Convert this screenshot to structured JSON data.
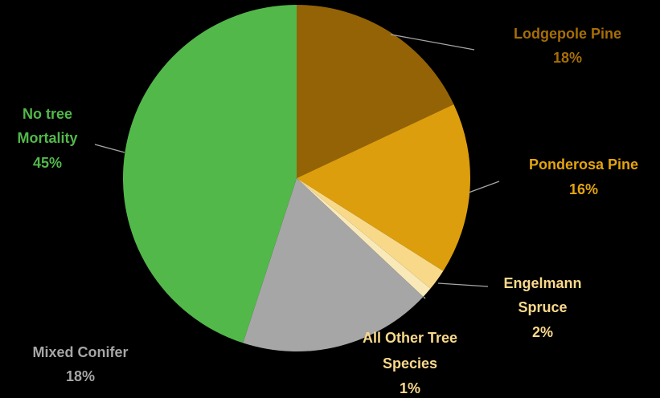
{
  "chart_data": {
    "type": "pie",
    "title": "",
    "background": "#000000",
    "slices": [
      {
        "label": "Lodgepole Pine",
        "value": 18,
        "value_label": "18%",
        "color": "#946306",
        "label_color": "#a66e06"
      },
      {
        "label": "Ponderosa Pine",
        "value": 16,
        "value_label": "16%",
        "color": "#dc9e0c",
        "label_color": "#e4a40e"
      },
      {
        "label": "Engelmann Spruce",
        "value": 2,
        "value_label": "2%",
        "color": "#f8d98a",
        "label_color": "#f9d98b"
      },
      {
        "label": "All Other Tree Species",
        "value": 1,
        "value_label": "1%",
        "color": "#fae9b8",
        "label_color": "#f9d98b"
      },
      {
        "label": "Mixed Conifer",
        "value": 18,
        "value_label": "18%",
        "color": "#a6a6a6",
        "label_color": "#a6a6a6"
      },
      {
        "label": "No tree Mortality",
        "value": 45,
        "value_label": "45%",
        "color": "#52b84a",
        "label_color": "#52b84a"
      }
    ],
    "leader_line_color": "#a6a6a6"
  }
}
